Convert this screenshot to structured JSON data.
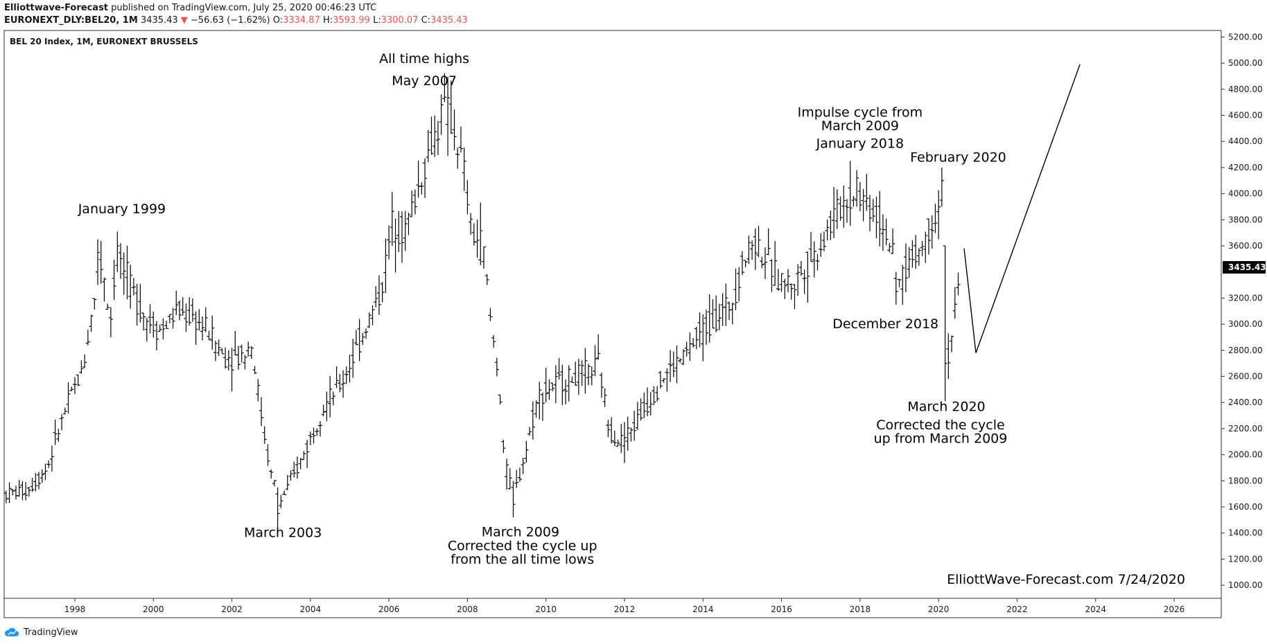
{
  "header": {
    "publisher": "Elliottwave-Forecast",
    "published_text": "published on TradingView.com, July 25, 2020 00:46:23 UTC",
    "symbol_line": "EURONEXT_DLY:BEL20, 1M",
    "last": "3435.43",
    "change": "−56.63 (−1.62%)",
    "o_label": "O:",
    "o_value": "3334.87",
    "h_label": "H:",
    "h_value": "3593.99",
    "l_label": "L:",
    "l_value": "3300.07",
    "c_label": "C:",
    "c_value": "3435.43"
  },
  "colors": {
    "down": "#ef5350",
    "bars": "#000000",
    "price_tag_bg": "#000000"
  },
  "footer": {
    "brand": "TradingView",
    "icon": "tradingview-cloud-icon"
  },
  "chart_data": {
    "type": "ohlc",
    "title": "BEL 20 Index, 1M, EURONEXT BRUSSELS",
    "ylim": [
      900,
      5250
    ],
    "xlim": [
      1996.2,
      2027.2
    ],
    "y_ticks": [
      "5200.00",
      "5000.00",
      "4800.00",
      "4600.00",
      "4400.00",
      "4200.00",
      "4000.00",
      "3800.00",
      "3600.00",
      "3435.43",
      "3200.00",
      "3000.00",
      "2800.00",
      "2600.00",
      "2400.00",
      "2200.00",
      "2000.00",
      "1800.00",
      "1600.00",
      "1400.00",
      "1200.00",
      "1000.00"
    ],
    "y_tick_values": [
      5200,
      5000,
      4800,
      4600,
      4400,
      4200,
      4000,
      3800,
      3600,
      3435.43,
      3200,
      3000,
      2800,
      2600,
      2400,
      2200,
      2000,
      1800,
      1600,
      1400,
      1200,
      1000
    ],
    "current_price_label": "3435.43",
    "x_ticks": [
      "1998",
      "2000",
      "2002",
      "2004",
      "2006",
      "2008",
      "2010",
      "2012",
      "2014",
      "2016",
      "2018",
      "2020",
      "2022",
      "2024",
      "2026"
    ],
    "x_tick_values": [
      1998,
      2000,
      2002,
      2004,
      2006,
      2008,
      2010,
      2012,
      2014,
      2016,
      2018,
      2020,
      2022,
      2024,
      2026
    ],
    "price_path": [
      [
        1996.25,
        1700
      ],
      [
        1996.8,
        1730
      ],
      [
        1997.3,
        1900
      ],
      [
        1997.6,
        2200
      ],
      [
        1997.9,
        2450
      ],
      [
        1998.2,
        2650
      ],
      [
        1998.5,
        3200
      ],
      [
        1998.7,
        3500
      ],
      [
        1998.9,
        3000
      ],
      [
        1999.05,
        3550
      ],
      [
        1999.4,
        3300
      ],
      [
        1999.8,
        3050
      ],
      [
        2000.2,
        2950
      ],
      [
        2000.6,
        3100
      ],
      [
        2001.0,
        3050
      ],
      [
        2001.4,
        2950
      ],
      [
        2001.8,
        2750
      ],
      [
        2002.2,
        2750
      ],
      [
        2002.5,
        2850
      ],
      [
        2002.8,
        2200
      ],
      [
        2003.0,
        1850
      ],
      [
        2003.25,
        1650
      ],
      [
        2003.6,
        1850
      ],
      [
        2003.9,
        2050
      ],
      [
        2004.3,
        2350
      ],
      [
        2004.8,
        2550
      ],
      [
        2005.3,
        2900
      ],
      [
        2005.8,
        3250
      ],
      [
        2006.1,
        3800
      ],
      [
        2006.4,
        3700
      ],
      [
        2006.8,
        4100
      ],
      [
        2007.1,
        4400
      ],
      [
        2007.4,
        4650
      ],
      [
        2007.6,
        4550
      ],
      [
        2007.9,
        4200
      ],
      [
        2008.1,
        3700
      ],
      [
        2008.4,
        3600
      ],
      [
        2008.6,
        3000
      ],
      [
        2008.8,
        2600
      ],
      [
        2008.95,
        1900
      ],
      [
        2009.2,
        1700
      ],
      [
        2009.5,
        2050
      ],
      [
        2009.8,
        2450
      ],
      [
        2010.3,
        2550
      ],
      [
        2010.8,
        2600
      ],
      [
        2011.2,
        2650
      ],
      [
        2011.35,
        2700
      ],
      [
        2011.6,
        2200
      ],
      [
        2011.9,
        2100
      ],
      [
        2012.2,
        2200
      ],
      [
        2012.6,
        2400
      ],
      [
        2013.0,
        2600
      ],
      [
        2013.5,
        2750
      ],
      [
        2014.0,
        2950
      ],
      [
        2014.3,
        3050
      ],
      [
        2014.7,
        3150
      ],
      [
        2015.0,
        3450
      ],
      [
        2015.3,
        3650
      ],
      [
        2015.6,
        3500
      ],
      [
        2015.9,
        3350
      ],
      [
        2016.3,
        3300
      ],
      [
        2016.6,
        3450
      ],
      [
        2016.9,
        3550
      ],
      [
        2017.3,
        3800
      ],
      [
        2017.6,
        3950
      ],
      [
        2018.0,
        4000
      ],
      [
        2018.4,
        3850
      ],
      [
        2018.7,
        3700
      ],
      [
        2018.95,
        3300
      ],
      [
        2019.3,
        3500
      ],
      [
        2019.6,
        3600
      ],
      [
        2019.9,
        3850
      ],
      [
        2020.1,
        3950
      ],
      [
        2020.22,
        2700
      ],
      [
        2020.35,
        2950
      ],
      [
        2020.5,
        3250
      ],
      [
        2020.56,
        3435
      ]
    ],
    "extreme_bars": [
      {
        "x": 1998.55,
        "high": 3650,
        "low": 3300,
        "open": 3400,
        "close": 3550
      },
      {
        "x": 1999.05,
        "high": 3710,
        "low": 3400,
        "open": 3450,
        "close": 3600
      },
      {
        "x": 2003.2,
        "high": 1750,
        "low": 1430,
        "open": 1700,
        "close": 1550
      },
      {
        "x": 2007.35,
        "high": 4760,
        "low": 4450,
        "open": 4550,
        "close": 4680
      },
      {
        "x": 2009.17,
        "high": 1800,
        "low": 1520,
        "open": 1750,
        "close": 1620
      },
      {
        "x": 2017.95,
        "high": 4180,
        "low": 3900,
        "open": 3950,
        "close": 4120
      },
      {
        "x": 2018.95,
        "high": 3400,
        "low": 3150,
        "open": 3350,
        "close": 3250
      },
      {
        "x": 2020.1,
        "high": 4200,
        "low": 3900,
        "open": 3950,
        "close": 4100
      },
      {
        "x": 2020.2,
        "high": 3600,
        "low": 2410,
        "open": 3600,
        "close": 2700
      }
    ],
    "projection": [
      [
        2020.65,
        3580
      ],
      [
        2020.95,
        2780
      ],
      [
        2023.6,
        4990
      ]
    ],
    "annotations": [
      {
        "text": "January 1999",
        "x": 1999.2,
        "y": 3850
      },
      {
        "text": "All time highs",
        "x": 2006.9,
        "y": 5000
      },
      {
        "text": "May 2007",
        "x": 2006.9,
        "y": 4830
      },
      {
        "text": "March 2003",
        "x": 2003.3,
        "y": 1370
      },
      {
        "text": "March 2009",
        "x": 2009.35,
        "y": 1375
      },
      {
        "text": "Corrected the cycle up",
        "x": 2009.4,
        "y": 1270
      },
      {
        "text": "from the all time lows",
        "x": 2009.4,
        "y": 1165
      },
      {
        "text": "Impulse cycle from",
        "x": 2018.0,
        "y": 4590
      },
      {
        "text": "March 2009",
        "x": 2018.0,
        "y": 4485
      },
      {
        "text": "January 2018",
        "x": 2018.0,
        "y": 4350
      },
      {
        "text": "February 2020",
        "x": 2020.5,
        "y": 4245
      },
      {
        "text": "December 2018",
        "x": 2018.65,
        "y": 2970
      },
      {
        "text": "March 2020",
        "x": 2020.2,
        "y": 2335
      },
      {
        "text": "Corrected the cycle",
        "x": 2020.05,
        "y": 2195
      },
      {
        "text": "up from March 2009",
        "x": 2020.05,
        "y": 2090
      }
    ],
    "watermark": "ElliottWave-Forecast.com 7/24/2020"
  }
}
